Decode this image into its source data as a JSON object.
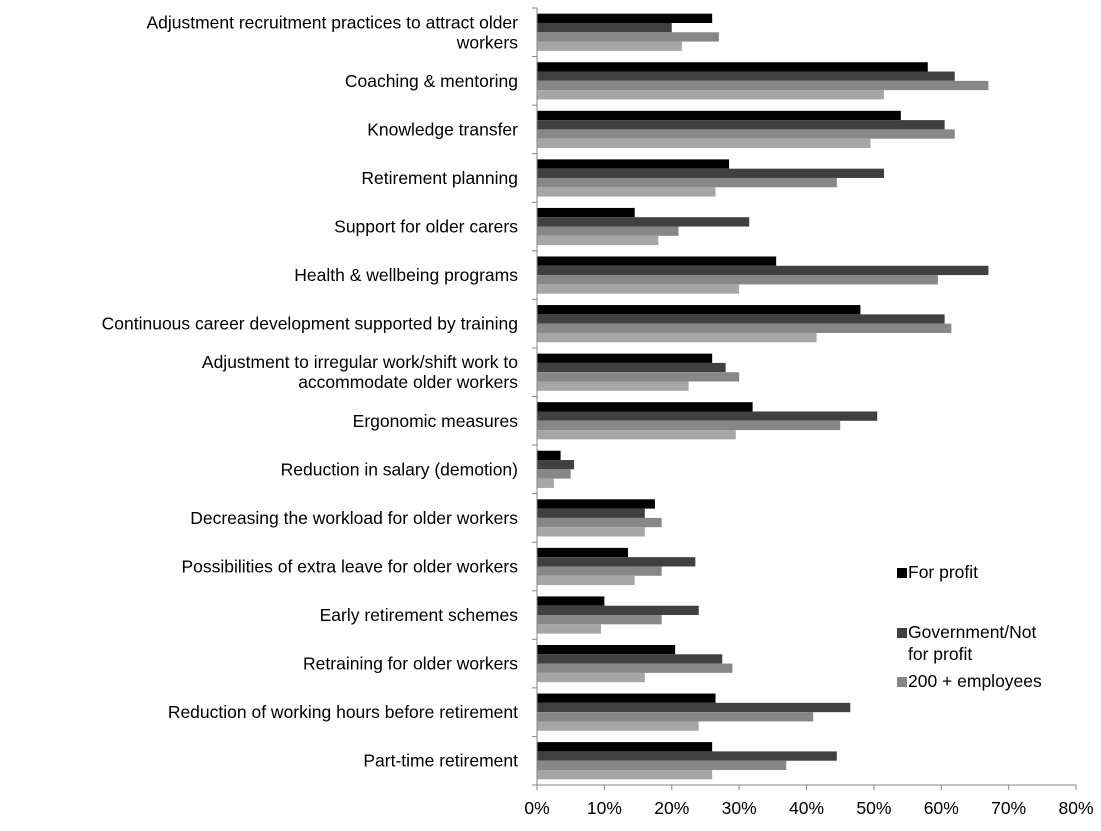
{
  "chart_data": {
    "type": "bar",
    "orientation": "horizontal",
    "categories": [
      [
        "Adjustment recruitment practices to attract older",
        "workers"
      ],
      [
        "Coaching & mentoring"
      ],
      [
        "Knowledge transfer"
      ],
      [
        "Retirement planning"
      ],
      [
        "Support for older carers"
      ],
      [
        "Health & wellbeing programs"
      ],
      [
        "Continuous career development supported by training"
      ],
      [
        "Adjustment to irregular work/shift work to",
        "accommodate older workers"
      ],
      [
        "Ergonomic measures"
      ],
      [
        "Reduction in salary (demotion)"
      ],
      [
        "Decreasing the workload for older workers"
      ],
      [
        "Possibilities of extra leave for older workers"
      ],
      [
        "Early retirement schemes"
      ],
      [
        "Retraining for older workers"
      ],
      [
        "Reduction of working hours before retirement"
      ],
      [
        "Part-time retirement"
      ]
    ],
    "series": [
      {
        "name": [
          "For profit"
        ],
        "color": "#000000",
        "values": [
          26,
          58,
          54,
          28.5,
          14.5,
          35.5,
          48,
          26,
          32,
          3.5,
          17.5,
          13.5,
          10,
          20.5,
          26.5,
          26
        ]
      },
      {
        "name": [
          "Government/Not",
          "for profit"
        ],
        "color": "#404040",
        "values": [
          20,
          62,
          60.5,
          51.5,
          31.5,
          67,
          60.5,
          28,
          50.5,
          5.5,
          16,
          23.5,
          24,
          27.5,
          46.5,
          44.5
        ]
      },
      {
        "name": [
          "200 + employees"
        ],
        "color": "#878787",
        "values": [
          27,
          67,
          62,
          44.5,
          21,
          59.5,
          61.5,
          30,
          45,
          5,
          18.5,
          18.5,
          18.5,
          29,
          41,
          37
        ]
      },
      {
        "name": [
          ""
        ],
        "color": "#a6a6a6",
        "values": [
          21.5,
          51.5,
          49.5,
          26.5,
          18,
          30,
          41.5,
          22.5,
          29.5,
          2.5,
          16,
          14.5,
          9.5,
          16,
          24,
          26
        ]
      }
    ],
    "x_ticks": [
      "0%",
      "10%",
      "20%",
      "30%",
      "40%",
      "50%",
      "60%",
      "70%",
      "80%"
    ],
    "xlim": [
      0,
      80
    ],
    "xlabel": "",
    "ylabel": "",
    "title": "",
    "grid": false,
    "legend_position": "right"
  }
}
